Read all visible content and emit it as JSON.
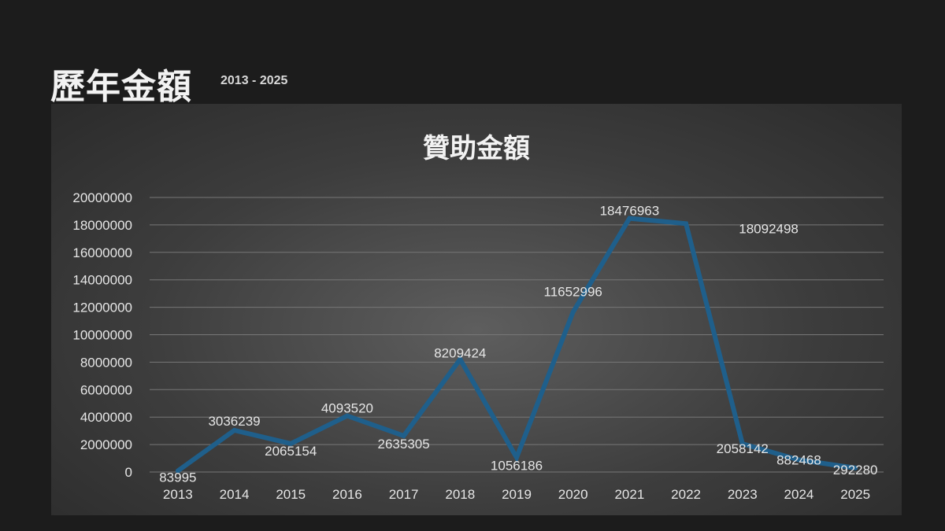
{
  "page": {
    "title": "歷年金額",
    "subtitle": "2013 - 2025"
  },
  "colors": {
    "line": "#1f5f8b",
    "background": "#1c1c1c"
  },
  "chart_data": {
    "type": "line",
    "title": "贊助金額",
    "xlabel": "",
    "ylabel": "",
    "categories": [
      "2013",
      "2014",
      "2015",
      "2016",
      "2017",
      "2018",
      "2019",
      "2020",
      "2021",
      "2022",
      "2023",
      "2024",
      "2025"
    ],
    "values": [
      83995,
      3036239,
      2065154,
      4093520,
      2635305,
      8209424,
      1056186,
      11652996,
      18476963,
      18092498,
      2058142,
      882468,
      292280
    ],
    "ylim": [
      0,
      20000000
    ],
    "yticks": [
      0,
      2000000,
      4000000,
      6000000,
      8000000,
      10000000,
      12000000,
      14000000,
      16000000,
      18000000,
      20000000
    ],
    "grid": true,
    "legend": "none",
    "data_labels": true
  }
}
